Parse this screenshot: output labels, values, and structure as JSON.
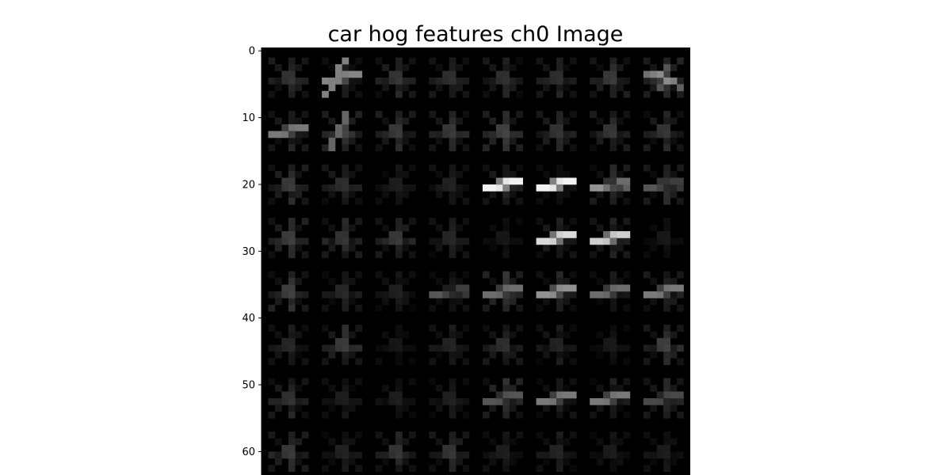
{
  "chart_data": {
    "type": "heatmap",
    "title": "car hog features ch0 Image",
    "xlabel": "",
    "ylabel": "",
    "colormap": "gray",
    "background_color": "#000000",
    "rows": 64,
    "cols": 64,
    "visible_rows": [
      -0.5,
      63.5
    ],
    "y_ticks": [
      0,
      10,
      20,
      30,
      40,
      50,
      60
    ],
    "x_ticks": [],
    "grid": false,
    "cell_size": 8,
    "cell_grid": [
      8,
      8
    ],
    "strong_cells": [
      {
        "row": 0,
        "col": 1,
        "orientation": "diagonal-up",
        "intensity": 0.55
      },
      {
        "row": 0,
        "col": 7,
        "orientation": "diagonal-down",
        "intensity": 0.55
      },
      {
        "row": 1,
        "col": 0,
        "orientation": "diagonal-up",
        "intensity": 0.5
      },
      {
        "row": 2,
        "col": 4,
        "orientation": "diagonal-up",
        "intensity": 1.0
      },
      {
        "row": 2,
        "col": 5,
        "orientation": "diagonal-up",
        "intensity": 1.0
      },
      {
        "row": 2,
        "col": 6,
        "orientation": "horizontal",
        "intensity": 0.6
      },
      {
        "row": 2,
        "col": 7,
        "orientation": "horizontal",
        "intensity": 0.35
      },
      {
        "row": 3,
        "col": 5,
        "orientation": "diagonal-up",
        "intensity": 0.9
      },
      {
        "row": 3,
        "col": 6,
        "orientation": "diagonal-up",
        "intensity": 0.85
      },
      {
        "row": 4,
        "col": 3,
        "orientation": "horizontal",
        "intensity": 0.35
      },
      {
        "row": 4,
        "col": 4,
        "orientation": "diagonal-up",
        "intensity": 0.45
      },
      {
        "row": 4,
        "col": 5,
        "orientation": "diagonal-up",
        "intensity": 0.6
      },
      {
        "row": 4,
        "col": 6,
        "orientation": "diagonal-up",
        "intensity": 0.45
      },
      {
        "row": 4,
        "col": 7,
        "orientation": "diagonal-up",
        "intensity": 0.5
      },
      {
        "row": 6,
        "col": 4,
        "orientation": "diagonal-up",
        "intensity": 0.35
      },
      {
        "row": 6,
        "col": 5,
        "orientation": "diagonal-up",
        "intensity": 0.5
      },
      {
        "row": 6,
        "col": 6,
        "orientation": "diagonal-up",
        "intensity": 0.5
      },
      {
        "row": 6,
        "col": 7,
        "orientation": "diagonal-up",
        "intensity": 0.3
      }
    ]
  }
}
